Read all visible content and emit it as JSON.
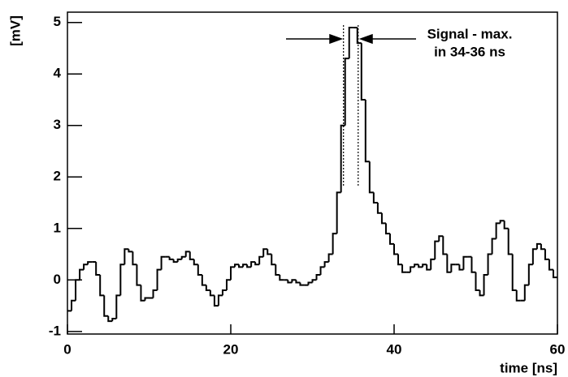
{
  "chart_data": {
    "type": "histogram",
    "xlabel": "time  [ns]",
    "ylabel": "[mV]",
    "annotation": [
      "Signal - max.",
      "in 34-36 ns"
    ],
    "annotation_lines": [
      33.8,
      35.6
    ],
    "color": "#000000",
    "xlim": [
      0,
      60
    ],
    "xticks": [
      0,
      20,
      40,
      60
    ],
    "ylim": [
      -1.05,
      5.2
    ],
    "yticks": [
      -1,
      0,
      1,
      2,
      3,
      4,
      5
    ],
    "bins": [
      0,
      0.5,
      1,
      1.5,
      2,
      2.5,
      3,
      3.5,
      4,
      4.5,
      5,
      5.5,
      6,
      6.5,
      7,
      7.5,
      8,
      8.5,
      9,
      9.5,
      10,
      10.5,
      11,
      11.5,
      12,
      12.5,
      13,
      13.5,
      14,
      14.5,
      15,
      15.5,
      16,
      16.5,
      17,
      17.5,
      18,
      18.5,
      19,
      19.5,
      20,
      20.5,
      21,
      21.5,
      22,
      22.5,
      23,
      23.5,
      24,
      24.5,
      25,
      25.5,
      26,
      26.5,
      27,
      27.5,
      28,
      28.5,
      29,
      29.5,
      30,
      30.5,
      31,
      31.5,
      32,
      32.5,
      33,
      33.5,
      34,
      34.5,
      35,
      35.5,
      36,
      36.5,
      37,
      37.5,
      38,
      38.5,
      39,
      39.5,
      40,
      40.5,
      41,
      41.5,
      42,
      42.5,
      43,
      43.5,
      44,
      44.5,
      45,
      45.5,
      46,
      46.5,
      47,
      47.5,
      48,
      48.5,
      49,
      49.5,
      50,
      50.5,
      51,
      51.5,
      52,
      52.5,
      53,
      53.5,
      54,
      54.5,
      55,
      55.5,
      56,
      56.5,
      57,
      57.5,
      58,
      58.5,
      59,
      59.5,
      60
    ],
    "values": [
      -0.6,
      -0.4,
      0.0,
      0.2,
      0.3,
      0.35,
      0.35,
      0.1,
      -0.3,
      -0.7,
      -0.8,
      -0.75,
      -0.3,
      0.3,
      0.6,
      0.55,
      0.3,
      -0.1,
      -0.4,
      -0.35,
      -0.35,
      -0.2,
      0.2,
      0.45,
      0.45,
      0.4,
      0.35,
      0.4,
      0.45,
      0.55,
      0.4,
      0.3,
      0.1,
      -0.1,
      -0.2,
      -0.3,
      -0.5,
      -0.3,
      -0.2,
      0.0,
      0.25,
      0.3,
      0.25,
      0.3,
      0.25,
      0.35,
      0.3,
      0.45,
      0.6,
      0.5,
      0.3,
      0.1,
      0.0,
      0.0,
      -0.05,
      0.0,
      -0.05,
      -0.1,
      -0.1,
      -0.05,
      0.0,
      0.1,
      0.25,
      0.35,
      0.5,
      0.9,
      1.7,
      3.0,
      4.3,
      4.9,
      4.9,
      4.6,
      3.5,
      2.3,
      1.7,
      1.5,
      1.3,
      1.1,
      0.9,
      0.7,
      0.5,
      0.3,
      0.15,
      0.15,
      0.25,
      0.3,
      0.25,
      0.3,
      0.2,
      0.4,
      0.75,
      0.85,
      0.5,
      0.15,
      0.3,
      0.3,
      0.2,
      0.45,
      0.45,
      0.15,
      -0.2,
      -0.3,
      0.1,
      0.5,
      0.8,
      1.1,
      1.15,
      1.0,
      0.5,
      -0.2,
      -0.4,
      -0.4,
      -0.1,
      0.3,
      0.6,
      0.7,
      0.6,
      0.4,
      0.2,
      0.05
    ]
  }
}
